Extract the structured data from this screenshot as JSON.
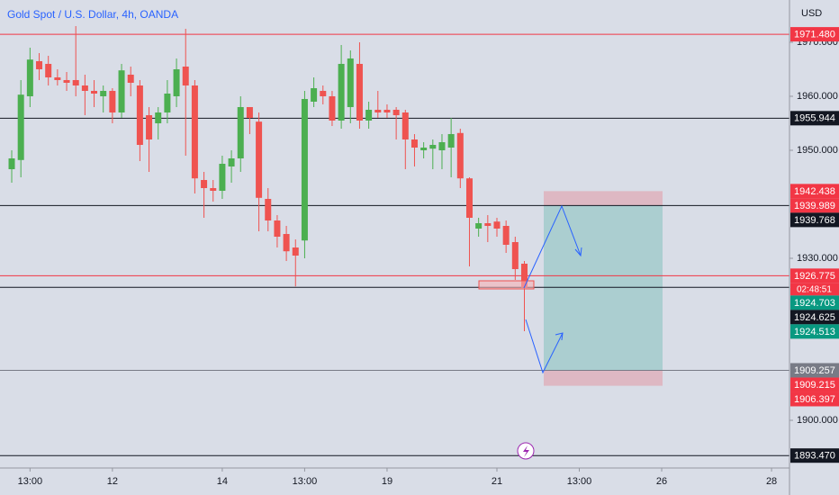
{
  "chart_data": {
    "type": "candlestick",
    "title": "Gold Spot / U.S. Dollar, 4h, OANDA",
    "currency": "USD",
    "up_color": "#4caf50",
    "down_color": "#ef5350",
    "xlim": [
      -1.28,
      84.96
    ],
    "ylim": [
      1891.17,
      1977.83
    ],
    "xticks": [
      {
        "value": 2,
        "label": "13:00"
      },
      {
        "value": 11,
        "label": "12"
      },
      {
        "value": 23,
        "label": "14"
      },
      {
        "value": 32,
        "label": "13:00"
      },
      {
        "value": 41,
        "label": "19"
      },
      {
        "value": 53,
        "label": "21"
      },
      {
        "value": 62,
        "label": "13:00"
      },
      {
        "value": 71,
        "label": "26"
      },
      {
        "value": 83,
        "label": "28"
      }
    ],
    "yticks": [
      {
        "value": 1970,
        "label": "1970.000"
      },
      {
        "value": 1960,
        "label": "1960.000"
      },
      {
        "value": 1950,
        "label": "1950.000"
      },
      {
        "value": 1930,
        "label": "1930.000"
      },
      {
        "value": 1900,
        "label": "1900.000"
      }
    ],
    "open": [
      1946.5,
      1948.2,
      1960,
      1966.5,
      1966,
      1963.5,
      1963,
      1963,
      1962,
      1961,
      1960,
      1961,
      1957,
      1964,
      1962,
      1956.5,
      1955,
      1957,
      1960,
      1965.5,
      1962,
      1944.5,
      1943,
      1942.5,
      1947,
      1948.5,
      1958,
      1955.3,
      1941,
      1937,
      1934.5,
      1932,
      1933.3,
      1959,
      1961,
      1960,
      1955.5,
      1958,
      1966,
      1955.5,
      1957.5,
      1957.5,
      1957.5,
      1957,
      1952,
      1950,
      1950.3,
      1950,
      1950.5,
      1953.2,
      1944.8,
      1935.5,
      1936.5,
      1936.8,
      1936,
      1933,
      1929
    ],
    "high": [
      1950,
      1963,
      1969,
      1968,
      1967.5,
      1965,
      1964.5,
      1973,
      1964,
      1963,
      1962,
      1961.5,
      1966,
      1965.5,
      1963,
      1958,
      1958,
      1963,
      1967,
      1972.5,
      1963,
      1946,
      1944.5,
      1949,
      1950,
      1960,
      1958,
      1957,
      1943,
      1938,
      1936,
      1933.5,
      1961,
      1963.5,
      1962,
      1961,
      1969.5,
      1968.5,
      1970,
      1959,
      1961,
      1958.5,
      1958,
      1957.5,
      1953,
      1951.5,
      1952,
      1953,
      1956,
      1954,
      1945,
      1937.5,
      1938,
      1937.5,
      1937,
      1934,
      1929.5
    ],
    "low": [
      1944,
      1945,
      1958,
      1963,
      1962,
      1962,
      1961,
      1960,
      1956.5,
      1958,
      1957,
      1955,
      1956,
      1960,
      1948,
      1946,
      1952,
      1955,
      1958,
      1949,
      1942,
      1937.5,
      1940.5,
      1941,
      1944,
      1946,
      1953,
      1935,
      1935,
      1932,
      1929.5,
      1924.8,
      1930,
      1958,
      1958.5,
      1954.5,
      1954,
      1955,
      1954,
      1954,
      1956,
      1956,
      1952,
      1946.5,
      1947,
      1948.5,
      1946.5,
      1946.5,
      1945,
      1943,
      1928.5,
      1934,
      1933,
      1934,
      1931,
      1926,
      1916.5
    ],
    "close": [
      1948.5,
      1960.3,
      1966.8,
      1965,
      1963.5,
      1963,
      1962.5,
      1962,
      1961,
      1960.5,
      1961,
      1957,
      1964.8,
      1962.5,
      1951,
      1952,
      1957,
      1960.5,
      1965,
      1962,
      1944.8,
      1943,
      1942.5,
      1947.5,
      1948.5,
      1958,
      1956,
      1941.2,
      1937,
      1934,
      1931.3,
      1930.5,
      1959.5,
      1961.5,
      1960,
      1955.5,
      1966,
      1967,
      1955.5,
      1957.5,
      1957,
      1957,
      1956.5,
      1952,
      1950.5,
      1950.5,
      1951,
      1951.5,
      1953,
      1944.8,
      1937.5,
      1936.5,
      1936,
      1935.5,
      1932.5,
      1928,
      1924.6
    ],
    "price_labels": [
      {
        "value": 1971.48,
        "label": "1971.480",
        "color": "#f23645",
        "line": true
      },
      {
        "value": 1955.944,
        "label": "1955.944",
        "color": "#131722",
        "line": true
      },
      {
        "value": 1942.438,
        "label": "1942.438",
        "color": "#f23645",
        "line": false
      },
      {
        "value": 1939.989,
        "label": "1939.989",
        "color": "#f23645",
        "line": false
      },
      {
        "value": 1939.768,
        "label": "1939.768",
        "color": "#131722",
        "line": true
      },
      {
        "value": 1926.775,
        "label": "1926.775",
        "color": "#f23645",
        "line": true,
        "countdown": "02:48:51"
      },
      {
        "value": 1924.703,
        "label": "1924.703",
        "color": "#089981",
        "line": false
      },
      {
        "value": 1924.625,
        "label": "1924.625",
        "color": "#131722",
        "line": true
      },
      {
        "value": 1924.513,
        "label": "1924.513",
        "color": "#089981",
        "line": false
      },
      {
        "value": 1909.257,
        "label": "1909.257",
        "color": "#787b86",
        "line": true
      },
      {
        "value": 1909.215,
        "label": "1909.215",
        "color": "#f23645",
        "line": false
      },
      {
        "value": 1906.397,
        "label": "1906.397",
        "color": "#f23645",
        "line": false
      },
      {
        "value": 1893.47,
        "label": "1893.470",
        "color": "#131722",
        "line": true
      }
    ]
  }
}
